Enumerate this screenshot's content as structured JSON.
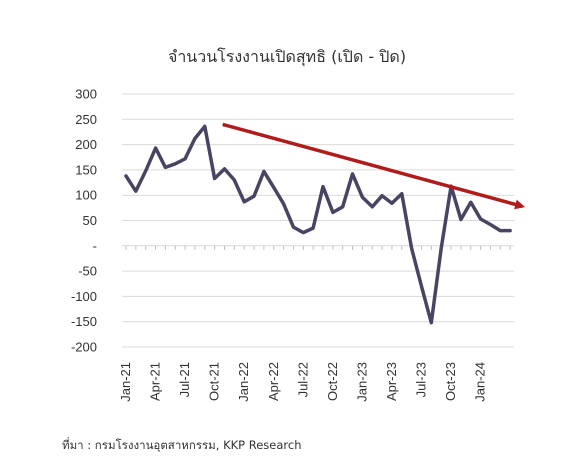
{
  "chart_data": {
    "type": "line",
    "title": "จำนวนโรงงานเปิดสุทธิ (เปิด - ปิด)",
    "xlabel": "",
    "ylabel": "",
    "ylim": [
      -200,
      300
    ],
    "yticks": [
      300,
      250,
      200,
      150,
      100,
      50,
      0,
      -50,
      -100,
      -150,
      -200
    ],
    "ytick_labels": [
      "300",
      "250",
      "200",
      "150",
      "100",
      "50",
      "-",
      "-50",
      "-100",
      "-150",
      "-200"
    ],
    "x": [
      "Jan-21",
      "Feb-21",
      "Mar-21",
      "Apr-21",
      "May-21",
      "Jun-21",
      "Jul-21",
      "Aug-21",
      "Sep-21",
      "Oct-21",
      "Nov-21",
      "Dec-21",
      "Jan-22",
      "Feb-22",
      "Mar-22",
      "Apr-22",
      "May-22",
      "Jun-22",
      "Jul-22",
      "Aug-22",
      "Sep-22",
      "Oct-22",
      "Nov-22",
      "Dec-22",
      "Jan-23",
      "Feb-23",
      "Mar-23",
      "Apr-23",
      "May-23",
      "Jun-23",
      "Jul-23",
      "Aug-23",
      "Sep-23",
      "Oct-23",
      "Nov-23",
      "Dec-23",
      "Jan-24",
      "Feb-24",
      "Mar-24",
      "Apr-24"
    ],
    "x_tick_labels": [
      "Jan-21",
      "Apr-21",
      "Jul-21",
      "Oct-21",
      "Jan-22",
      "Apr-22",
      "Jul-22",
      "Oct-22",
      "Jan-23",
      "Apr-23",
      "Jul-23",
      "Oct-23",
      "Jan-24"
    ],
    "series": [
      {
        "color": "#4a4363",
        "values": [
          138,
          108,
          148,
          193,
          155,
          162,
          172,
          212,
          236,
          133,
          152,
          130,
          87,
          98,
          147,
          115,
          83,
          37,
          26,
          35,
          117,
          66,
          77,
          142,
          96,
          77,
          99,
          84,
          103,
          -5,
          -80,
          -152,
          -5,
          118,
          52,
          86,
          53,
          42,
          30,
          30
        ]
      }
    ],
    "trend_arrow": {
      "color": "#b01c1c",
      "from": {
        "x": "Oct-21",
        "y": 236
      },
      "to": {
        "x": "Apr-24",
        "y": 80
      }
    },
    "grid": true,
    "source_note": "ที่มา : กรมโรงงานอุตสาหกรรม, KKP Research"
  }
}
